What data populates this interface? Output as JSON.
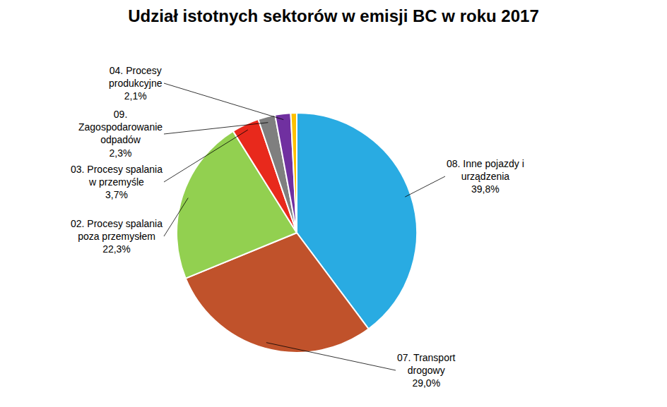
{
  "chart_data": {
    "type": "pie",
    "title": "Udział istotnych sektorów w emisji BC w roku 2017",
    "categories": [
      "08. Inne pojazdy i\nurządzenia\n39,8%",
      "07. Transport\ndrogowy\n29,0%",
      "02. Procesy spalania\npoza przemysłem\n22,3%",
      "03. Procesy spalania\nw przemyśle\n3,7%",
      "09.\nZagospodarowanie\nodpadów\n2,3%",
      "04. Procesy\nprodukcyjne\n2,1%",
      null
    ],
    "values": [
      39.8,
      29.0,
      22.3,
      3.7,
      2.3,
      2.1,
      0.8
    ],
    "colors": [
      "#29ABE2",
      "#C0522B",
      "#92D050",
      "#E8291C",
      "#7F7F7F",
      "#7030A0",
      "#FFC000"
    ]
  }
}
